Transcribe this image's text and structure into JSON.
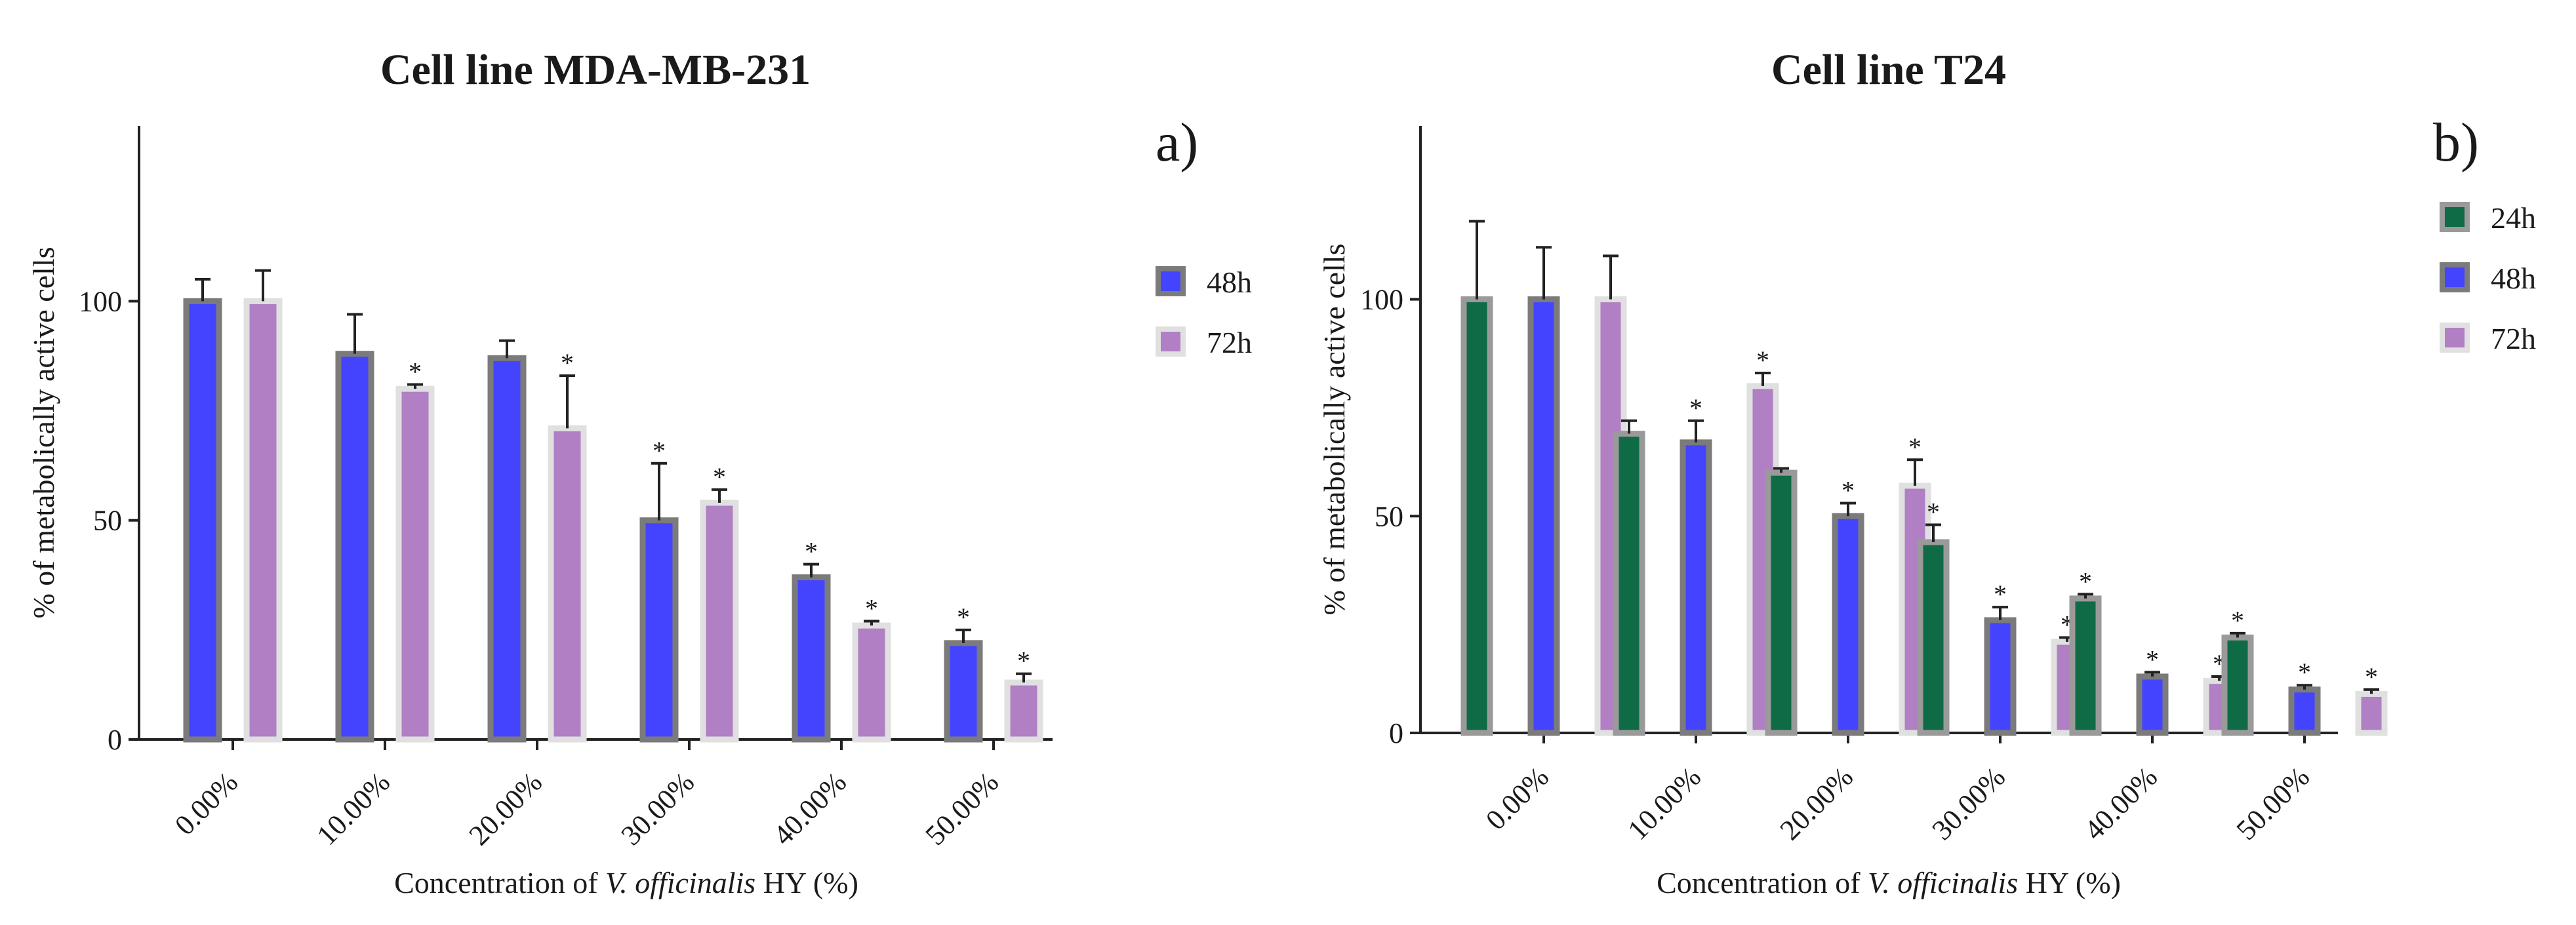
{
  "chart_data": [
    {
      "type": "bar",
      "title": "Cell line MDA-MB-231",
      "panel_label": "a)",
      "ylabel": "% of metabolically active cells",
      "xlabel": {
        "prefix": "Concentration of ",
        "italic": "V. officinalis",
        "suffix": " HY (%)"
      },
      "ylim": [
        0,
        140
      ],
      "yticks": [
        "0",
        "50",
        "100"
      ],
      "ytick_values": [
        0,
        50,
        100
      ],
      "categories": [
        "0.00%",
        "10.00%",
        "20.00%",
        "30.00%",
        "40.00%",
        "50.00%"
      ],
      "series": [
        {
          "name": "48h",
          "color": "#4444ff",
          "edge": "#7b7b7b",
          "values": [
            100,
            88,
            87,
            50,
            37,
            22
          ],
          "errors": [
            5,
            9,
            4,
            13,
            3,
            3
          ],
          "significant": [
            false,
            false,
            false,
            true,
            true,
            true
          ]
        },
        {
          "name": "72h",
          "color": "#b07fc4",
          "edge": "#e0e0e0",
          "values": [
            100,
            80,
            71,
            54,
            26,
            13
          ],
          "errors": [
            7,
            1,
            12,
            3,
            1,
            2
          ],
          "significant": [
            false,
            true,
            true,
            true,
            true,
            true
          ]
        }
      ],
      "significance_marker": "*"
    },
    {
      "type": "bar",
      "title": "Cell line T24",
      "panel_label": "b)",
      "ylabel": "% of metabolically active cells",
      "xlabel": {
        "prefix": "Concentration of ",
        "italic": "V. officinalis",
        "suffix": " HY (%)"
      },
      "ylim": [
        0,
        140
      ],
      "yticks": [
        "0",
        "50",
        "100"
      ],
      "ytick_values": [
        0,
        50,
        100
      ],
      "categories": [
        "0.00%",
        "10.00%",
        "20.00%",
        "30.00%",
        "40.00%",
        "50.00%"
      ],
      "series": [
        {
          "name": "24h",
          "color": "#0f6b45",
          "edge": "#9a9a9a",
          "values": [
            100,
            69,
            60,
            44,
            31,
            22
          ],
          "errors": [
            18,
            3,
            1,
            4,
            1,
            1
          ],
          "significant": [
            false,
            false,
            false,
            true,
            true,
            true
          ]
        },
        {
          "name": "48h",
          "color": "#4444ff",
          "edge": "#7b7b7b",
          "values": [
            100,
            67,
            50,
            26,
            13,
            10
          ],
          "errors": [
            12,
            5,
            3,
            3,
            1,
            1
          ],
          "significant": [
            false,
            true,
            true,
            true,
            true,
            true
          ]
        },
        {
          "name": "72h",
          "color": "#b07fc4",
          "edge": "#e0e0e0",
          "values": [
            100,
            80,
            57,
            21,
            12,
            9
          ],
          "errors": [
            10,
            3,
            6,
            1,
            1,
            1
          ],
          "significant": [
            false,
            true,
            true,
            true,
            true,
            true
          ]
        }
      ],
      "significance_marker": "*"
    }
  ]
}
